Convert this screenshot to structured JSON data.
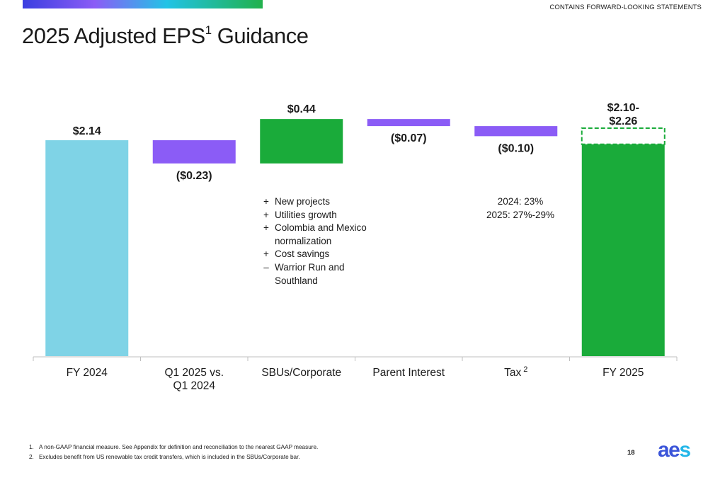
{
  "header": {
    "disclaimer": "CONTAINS FORWARD-LOOKING STATEMENTS",
    "title_main": "2025 Adjusted EPS",
    "title_sup": "1",
    "title_end": " Guidance"
  },
  "colors": {
    "total_start": "#7fd3e6",
    "decrease": "#8b5cf6",
    "increase": "#1aab3a",
    "total_end": "#1aab3a",
    "range_outline": "#1aab3a",
    "axis": "#bfbfbf",
    "brand_blue": "#3b55d9",
    "brand_cyan": "#22b6e8"
  },
  "chart_data": {
    "type": "bar",
    "subtype": "waterfall",
    "categories": [
      "FY 2024",
      "Q1 2025 vs.\nQ1 2024",
      "SBUs/Corporate",
      "Parent Interest",
      "Tax",
      "FY 2025"
    ],
    "category_superscripts": [
      "",
      "",
      "",
      "",
      "2",
      ""
    ],
    "steps": [
      {
        "kind": "total",
        "value": 2.14,
        "label": "$2.14"
      },
      {
        "kind": "delta",
        "value": -0.23,
        "label": "($0.23)"
      },
      {
        "kind": "delta",
        "value": 0.44,
        "label": "$0.44"
      },
      {
        "kind": "delta",
        "value": -0.07,
        "label": "($0.07)"
      },
      {
        "kind": "delta",
        "value": -0.1,
        "label": "($0.10)"
      },
      {
        "kind": "range_total",
        "low": 2.1,
        "high": 2.26,
        "label": "$2.10-\n$2.26"
      }
    ],
    "ylim": [
      0,
      2.6
    ],
    "grid": false,
    "legend": "none"
  },
  "annotations": {
    "sbu_bullets": [
      {
        "sign": "+",
        "text": "New projects"
      },
      {
        "sign": "+",
        "text": "Utilities growth"
      },
      {
        "sign": "+",
        "text": "Colombia and Mexico normalization"
      },
      {
        "sign": "+",
        "text": "Cost savings"
      },
      {
        "sign": "–",
        "text": "Warrior Run and Southland"
      }
    ],
    "tax_lines": [
      "2024: 23%",
      "2025: 27%-29%"
    ]
  },
  "footnotes": [
    {
      "num": "1.",
      "text": "A non-GAAP financial measure.  See Appendix for definition and reconciliation to the nearest GAAP measure."
    },
    {
      "num": "2.",
      "text": "Excludes benefit from US renewable tax credit transfers, which is included in the SBUs/Corporate bar."
    }
  ],
  "page_number": "18",
  "logo_text": "aes"
}
